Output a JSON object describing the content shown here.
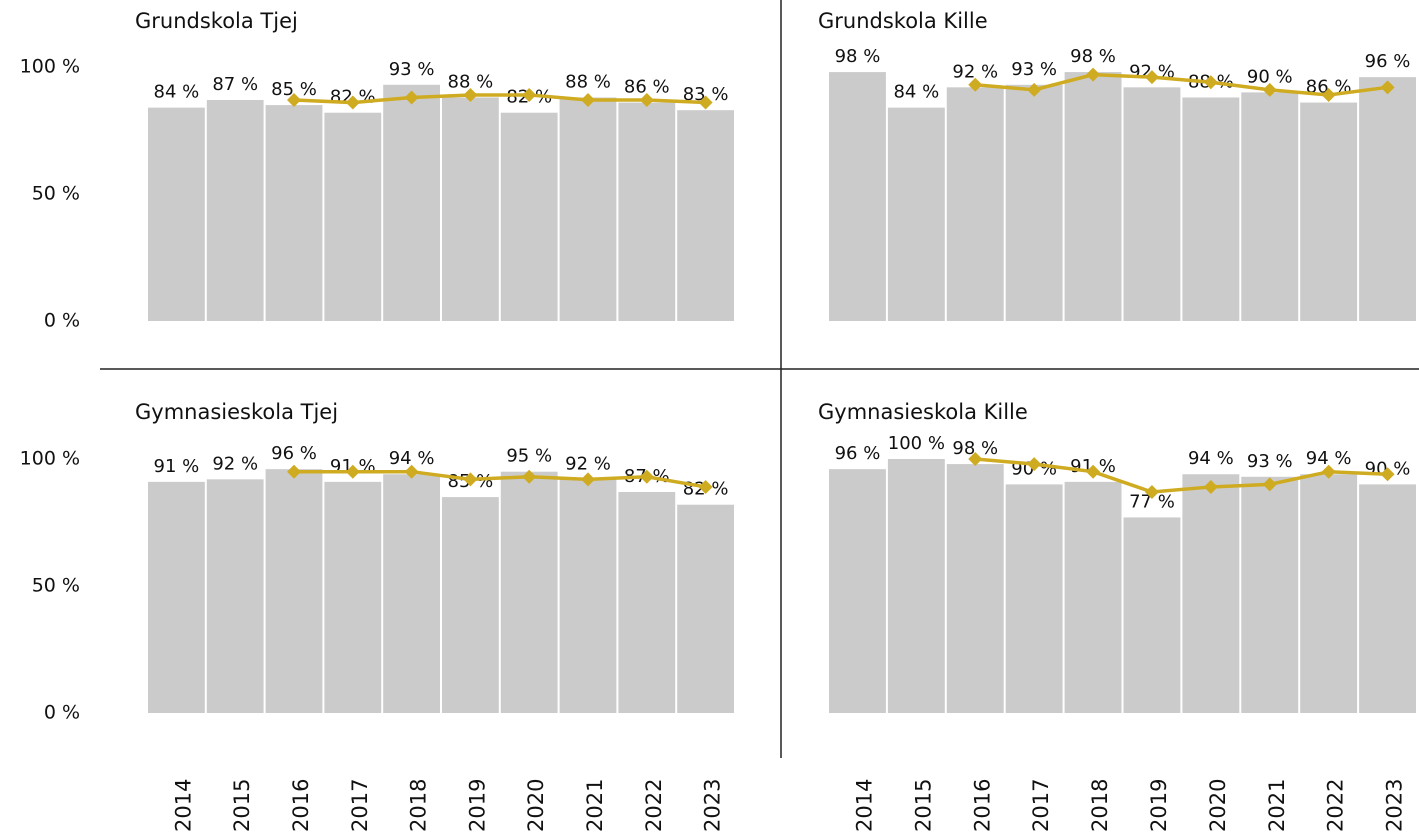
{
  "chart_data": [
    {
      "type": "bar",
      "title": "Grundskola Tjej",
      "values": [
        84,
        87,
        85,
        82,
        93,
        88,
        82,
        88,
        86,
        83
      ],
      "value_labels": [
        "84 %",
        "87 %",
        "85 %",
        "82 %",
        "93 %",
        "88 %",
        "82 %",
        "88 %",
        "86 %",
        "83 %"
      ],
      "color": "#cbcbcb",
      "line": {
        "color": "#cfab21",
        "values": [
          null,
          null,
          87,
          86,
          88,
          89,
          89,
          87,
          87,
          86
        ]
      },
      "ylim": [
        0,
        100
      ],
      "yticks": [
        {
          "value": 0,
          "label": "0 %"
        },
        {
          "value": 50,
          "label": "50 %"
        },
        {
          "value": 100,
          "label": "100 %"
        }
      ]
    },
    {
      "type": "bar",
      "title": "Grundskola Kille",
      "values": [
        98,
        84,
        92,
        93,
        98,
        92,
        88,
        90,
        86,
        96
      ],
      "value_labels": [
        "98 %",
        "84 %",
        "92 %",
        "93 %",
        "98 %",
        "92 %",
        "88 %",
        "90 %",
        "86 %",
        "96 %"
      ],
      "color": "#cbcbcb",
      "line": {
        "color": "#cfab21",
        "values": [
          null,
          null,
          93,
          91,
          97,
          96,
          94,
          91,
          89,
          92
        ]
      },
      "ylim": [
        0,
        100
      ]
    },
    {
      "type": "bar",
      "title": "Gymnasieskola Tjej",
      "categories": [
        "2014",
        "2015",
        "2016",
        "2017",
        "2018",
        "2019",
        "2020",
        "2021",
        "2022",
        "2023"
      ],
      "values": [
        91,
        92,
        96,
        91,
        94,
        85,
        95,
        92,
        87,
        82
      ],
      "value_labels": [
        "91 %",
        "92 %",
        "96 %",
        "91 %",
        "94 %",
        "85 %",
        "95 %",
        "92 %",
        "87 %",
        "82 %"
      ],
      "color": "#cbcbcb",
      "line": {
        "color": "#cfab21",
        "values": [
          null,
          null,
          95,
          95,
          95,
          92,
          93,
          92,
          93,
          89
        ]
      },
      "ylim": [
        0,
        100
      ],
      "yticks": [
        {
          "value": 0,
          "label": "0 %"
        },
        {
          "value": 50,
          "label": "50 %"
        },
        {
          "value": 100,
          "label": "100 %"
        }
      ]
    },
    {
      "type": "bar",
      "title": "Gymnasieskola Kille",
      "categories": [
        "2014",
        "2015",
        "2016",
        "2017",
        "2018",
        "2019",
        "2020",
        "2021",
        "2022",
        "2023"
      ],
      "values": [
        96,
        100,
        98,
        90,
        91,
        77,
        94,
        93,
        94,
        90
      ],
      "value_labels": [
        "96 %",
        "100 %",
        "98 %",
        "90 %",
        "91 %",
        "77 %",
        "94 %",
        "93 %",
        "94 %",
        "90 %"
      ],
      "color": "#cbcbcb",
      "line": {
        "color": "#cfab21",
        "values": [
          null,
          null,
          100,
          98,
          95,
          87,
          89,
          90,
          95,
          94
        ]
      },
      "ylim": [
        0,
        100
      ]
    }
  ]
}
